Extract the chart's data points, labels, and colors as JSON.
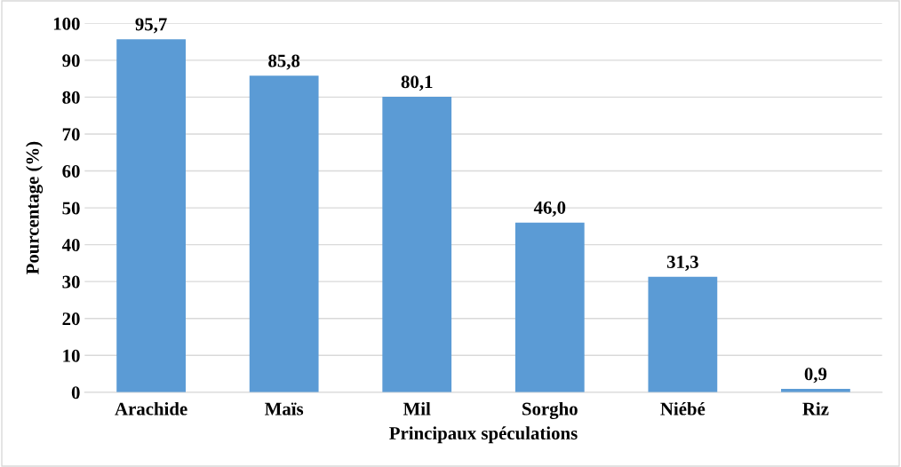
{
  "chart_data": {
    "type": "bar",
    "xlabel": "Principaux spéculations",
    "ylabel": "Pourcentage (%)",
    "categories": [
      "Arachide",
      "Maïs",
      "Mil",
      "Sorgho",
      "Niébé",
      "Riz"
    ],
    "values": [
      95.7,
      85.8,
      80.1,
      46.0,
      31.3,
      0.9
    ],
    "value_labels": [
      "95,7",
      "85,8",
      "80,1",
      "46,0",
      "31,3",
      "0,9"
    ],
    "color": "#5b9bd5",
    "ylim": [
      0,
      100
    ],
    "yticks": [
      0,
      10,
      20,
      30,
      40,
      50,
      60,
      70,
      80,
      90,
      100
    ],
    "grid": "y",
    "legend": false
  }
}
